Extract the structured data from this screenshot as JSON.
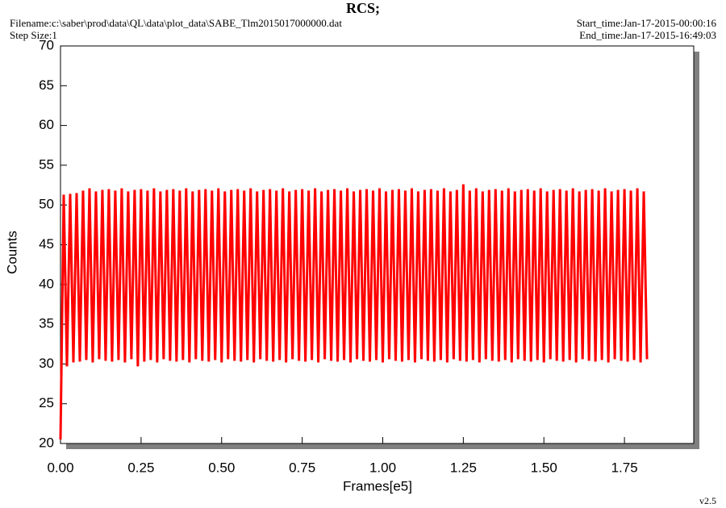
{
  "chart_data": {
    "type": "line",
    "title": "RCS;",
    "filename": "Filename:c:\\saber\\prod\\data\\QL\\data\\plot_data\\SABE_Tlm2015017000000.dat",
    "step_size": "Step Size:1",
    "start_time": "Start_time:Jan-17-2015-00:00:16",
    "end_time": "End_time:Jan-17-2015-16:49:03",
    "version": "v2.5",
    "x_label": "Frames[e5]",
    "y_label": "Counts",
    "xlim": [
      0,
      1.965
    ],
    "ylim": [
      20,
      70
    ],
    "xticks": [
      {
        "value": 0,
        "label": "0.00"
      },
      0.25,
      {
        "value": 0.5,
        "label": "0.50"
      },
      0.75,
      {
        "value": 1,
        "label": "1.00"
      },
      1.25,
      {
        "value": 1.5,
        "label": "1.50"
      },
      1.75
    ],
    "yticks": [
      20,
      25,
      30,
      35,
      40,
      45,
      50,
      55,
      60,
      65,
      70
    ],
    "grid": false,
    "x": [
      0,
      0.01,
      0.02,
      0.03,
      0.04,
      0.05,
      0.06,
      0.07,
      0.08,
      0.09,
      0.1,
      0.11,
      0.12,
      0.13,
      0.14,
      0.15,
      0.16,
      0.17,
      0.18,
      0.19,
      0.2,
      0.21,
      0.22,
      0.23,
      0.24,
      0.25,
      0.26,
      0.27,
      0.28,
      0.29,
      0.3,
      0.31,
      0.32,
      0.33,
      0.34,
      0.35,
      0.36,
      0.37,
      0.38,
      0.39,
      0.4,
      0.41,
      0.42,
      0.43,
      0.44,
      0.45,
      0.46,
      0.47,
      0.48,
      0.49,
      0.5,
      0.51,
      0.52,
      0.53,
      0.54,
      0.55,
      0.56,
      0.57,
      0.58,
      0.59,
      0.6,
      0.61,
      0.62,
      0.63,
      0.64,
      0.65,
      0.66,
      0.67,
      0.68,
      0.69,
      0.7,
      0.71,
      0.72,
      0.73,
      0.74,
      0.75,
      0.76,
      0.77,
      0.78,
      0.79,
      0.8,
      0.81,
      0.82,
      0.83,
      0.84,
      0.85,
      0.86,
      0.87,
      0.88,
      0.89,
      0.9,
      0.91,
      0.92,
      0.93,
      0.94,
      0.95,
      0.96,
      0.97,
      0.98,
      0.99,
      1,
      1.01,
      1.02,
      1.03,
      1.04,
      1.05,
      1.06,
      1.07,
      1.08,
      1.09,
      1.1,
      1.11,
      1.12,
      1.13,
      1.14,
      1.15,
      1.16,
      1.17,
      1.18,
      1.19,
      1.2,
      1.21,
      1.22,
      1.23,
      1.24,
      1.25,
      1.26,
      1.27,
      1.28,
      1.29,
      1.3,
      1.31,
      1.32,
      1.33,
      1.34,
      1.35,
      1.36,
      1.37,
      1.38,
      1.39,
      1.4,
      1.41,
      1.42,
      1.43,
      1.44,
      1.45,
      1.46,
      1.47,
      1.48,
      1.49,
      1.5,
      1.51,
      1.52,
      1.53,
      1.54,
      1.55,
      1.56,
      1.57,
      1.58,
      1.59,
      1.6,
      1.61,
      1.62,
      1.63,
      1.64,
      1.65,
      1.66,
      1.67,
      1.68,
      1.69,
      1.7,
      1.71,
      1.72,
      1.73,
      1.74,
      1.75,
      1.76,
      1.77,
      1.78,
      1.79,
      1.8,
      1.81,
      1.82
    ],
    "series": [
      {
        "color": "#ff0000",
        "values": [
          20.5,
          51.3,
          29.7,
          51.4,
          30.2,
          51.5,
          30.3,
          51.8,
          30.5,
          52.1,
          30.2,
          51.7,
          30.6,
          51.9,
          30.4,
          52.0,
          30.3,
          51.8,
          30.5,
          52.1,
          30.2,
          51.7,
          30.6,
          51.9,
          29.7,
          52.0,
          30.3,
          51.8,
          30.5,
          52.1,
          30.2,
          51.7,
          30.6,
          51.9,
          30.4,
          52.0,
          30.3,
          51.8,
          30.5,
          52.1,
          30.2,
          51.7,
          30.6,
          51.9,
          30.4,
          52.0,
          30.3,
          51.8,
          30.5,
          52.1,
          30.2,
          51.7,
          30.6,
          51.9,
          30.4,
          52.0,
          30.3,
          51.8,
          30.5,
          52.1,
          30.2,
          51.7,
          30.6,
          51.9,
          30.4,
          52.0,
          30.3,
          51.8,
          30.5,
          52.1,
          30.2,
          51.7,
          30.6,
          51.9,
          30.4,
          52.0,
          30.3,
          51.8,
          30.5,
          52.1,
          30.2,
          51.7,
          30.6,
          51.9,
          30.4,
          52.0,
          30.3,
          51.8,
          30.5,
          52.1,
          30.2,
          51.7,
          30.6,
          51.9,
          30.4,
          52.0,
          30.3,
          51.8,
          30.5,
          52.1,
          30.2,
          51.7,
          30.6,
          51.9,
          30.4,
          52.0,
          30.3,
          51.8,
          30.5,
          52.1,
          30.2,
          51.7,
          30.6,
          51.9,
          30.4,
          52.0,
          30.3,
          51.8,
          30.5,
          52.1,
          30.2,
          51.7,
          30.6,
          51.9,
          30.4,
          52.6,
          30.3,
          51.8,
          30.5,
          52.1,
          30.2,
          51.7,
          30.6,
          51.9,
          30.4,
          52.0,
          30.3,
          51.8,
          30.5,
          52.1,
          30.2,
          51.7,
          30.6,
          51.9,
          30.4,
          52.0,
          30.3,
          51.8,
          30.5,
          52.1,
          30.2,
          51.7,
          30.6,
          51.9,
          30.4,
          52.0,
          30.3,
          51.8,
          30.5,
          52.1,
          30.2,
          51.7,
          30.6,
          51.9,
          30.4,
          52.0,
          30.3,
          51.8,
          30.5,
          52.1,
          30.2,
          51.7,
          30.6,
          51.9,
          30.4,
          52.0,
          30.3,
          51.8,
          30.5,
          52.1,
          30.2,
          51.7,
          30.6
        ]
      }
    ]
  }
}
